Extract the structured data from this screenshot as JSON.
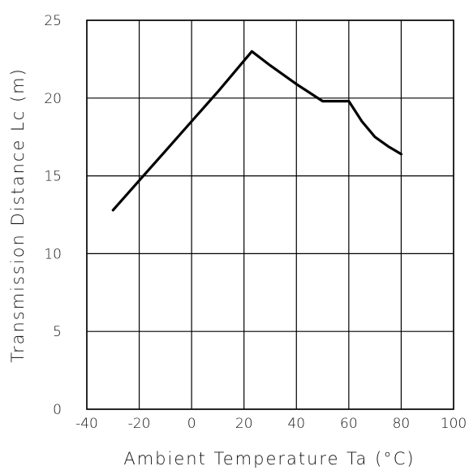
{
  "chart_data": {
    "type": "line",
    "title": "",
    "xlabel": "Ambient Temperature Ta (°C)",
    "ylabel": "Transmission Distance Lc (m)",
    "xlim": [
      -40,
      100
    ],
    "ylim": [
      0,
      25
    ],
    "x_ticks": [
      "-40",
      "-20",
      "0",
      "20",
      "40",
      "60",
      "80",
      "100"
    ],
    "y_ticks": [
      "0",
      "5",
      "10",
      "15",
      "20",
      "25"
    ],
    "grid": true,
    "series": [
      {
        "x": [
          -30,
          -20,
          -10,
          0,
          10,
          20,
          23,
          30,
          40,
          50,
          55,
          60,
          65,
          70,
          75,
          80
        ],
        "y": [
          12.8,
          14.7,
          16.6,
          18.5,
          20.4,
          22.4,
          23.0,
          22.1,
          20.9,
          19.8,
          19.8,
          19.8,
          18.5,
          17.5,
          16.9,
          16.4
        ]
      }
    ]
  }
}
